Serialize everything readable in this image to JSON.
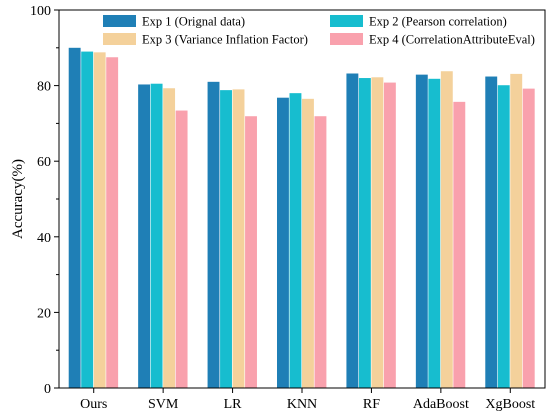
{
  "chart_data": {
    "type": "bar",
    "title": "",
    "xlabel": "",
    "ylabel": "Accuracy(%)",
    "ylim": [
      0,
      100
    ],
    "yticks": [
      0,
      20,
      40,
      60,
      80,
      100
    ],
    "grid": false,
    "legend_position": "top",
    "categories": [
      "Ours",
      "SVM",
      "LR",
      "KNN",
      "RF",
      "AdaBoost",
      "XgBoost"
    ],
    "series": [
      {
        "name": "Exp 1 (Orignal data)",
        "color": "#1f7fb6",
        "values": [
          90.0,
          80.3,
          81.0,
          76.8,
          83.2,
          82.9,
          82.4
        ]
      },
      {
        "name": "Exp 2 (Pearson correlation)",
        "color": "#17bdcf",
        "values": [
          89.0,
          80.5,
          78.8,
          78.0,
          82.0,
          81.8,
          80.1
        ]
      },
      {
        "name": "Exp 3 (Variance Inflation Factor)",
        "color": "#f4d19b",
        "values": [
          88.8,
          79.3,
          79.0,
          76.5,
          82.2,
          83.8,
          83.1
        ]
      },
      {
        "name": "Exp 4 (CorrelationAttributeEval)",
        "color": "#f9a1ad",
        "values": [
          87.5,
          73.4,
          71.9,
          71.9,
          80.8,
          75.7,
          79.2
        ]
      }
    ]
  }
}
